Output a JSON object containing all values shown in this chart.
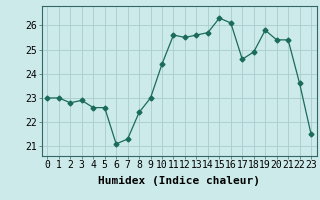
{
  "x": [
    0,
    1,
    2,
    3,
    4,
    5,
    6,
    7,
    8,
    9,
    10,
    11,
    12,
    13,
    14,
    15,
    16,
    17,
    18,
    19,
    20,
    21,
    22,
    23
  ],
  "y": [
    23.0,
    23.0,
    22.8,
    22.9,
    22.6,
    22.6,
    21.1,
    21.3,
    22.4,
    23.0,
    24.4,
    25.6,
    25.5,
    25.6,
    25.7,
    26.3,
    26.1,
    24.6,
    24.9,
    25.8,
    25.4,
    25.4,
    23.6,
    21.5
  ],
  "line_color": "#1a6b5a",
  "marker": "D",
  "marker_size": 2.5,
  "background_color": "#cceaea",
  "grid_color": "#aacccc",
  "xlabel": "Humidex (Indice chaleur)",
  "xlabel_fontsize": 8,
  "tick_fontsize": 7,
  "ylim": [
    20.6,
    26.8
  ],
  "xlim": [
    -0.5,
    23.5
  ],
  "yticks": [
    21,
    22,
    23,
    24,
    25,
    26
  ],
  "xticks": [
    0,
    1,
    2,
    3,
    4,
    5,
    6,
    7,
    8,
    9,
    10,
    11,
    12,
    13,
    14,
    15,
    16,
    17,
    18,
    19,
    20,
    21,
    22,
    23
  ]
}
